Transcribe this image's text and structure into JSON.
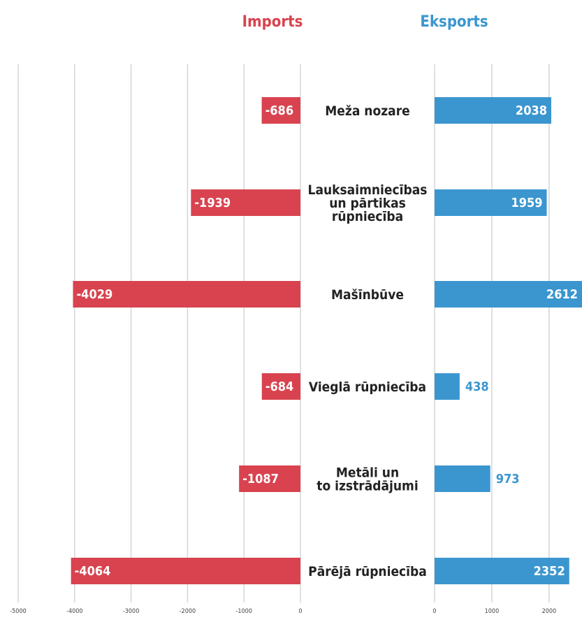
{
  "colors": {
    "imports": "#d8434f",
    "exports": "#3b96cf",
    "grid": "#d5d5d5",
    "text": "#222222"
  },
  "chart_data": {
    "type": "bar",
    "orientation": "horizontal",
    "title": "",
    "series": [
      {
        "name": "Imports",
        "values": [
          -686,
          -1939,
          -4029,
          -684,
          -1087,
          -4064
        ]
      },
      {
        "name": "Eksports",
        "values": [
          2038,
          1959,
          2612,
          438,
          973,
          2352
        ]
      }
    ],
    "categories": [
      [
        "Meža nozare"
      ],
      [
        "Lauksaimniecības",
        "un pārtikas",
        "rūpniecība"
      ],
      [
        "Mašīnbūve"
      ],
      [
        "Vieglā rūpniecība"
      ],
      [
        "Metāli un",
        "to izstrādājumi"
      ],
      [
        "Pārējā rūpniecība"
      ]
    ],
    "imports_axis": {
      "range": [
        -5000,
        0
      ],
      "ticks": [
        -5000,
        -4000,
        -3000,
        -2000,
        -1000,
        0
      ],
      "tick_labels": [
        "-5000",
        "-4000",
        "-3000",
        "-2000",
        "-1000",
        "0"
      ]
    },
    "exports_axis": {
      "range": [
        0,
        2500
      ],
      "ticks": [
        0,
        1000,
        2000
      ],
      "tick_labels": [
        "0",
        "1000",
        "2000"
      ]
    },
    "grid": true,
    "legend": "top"
  }
}
